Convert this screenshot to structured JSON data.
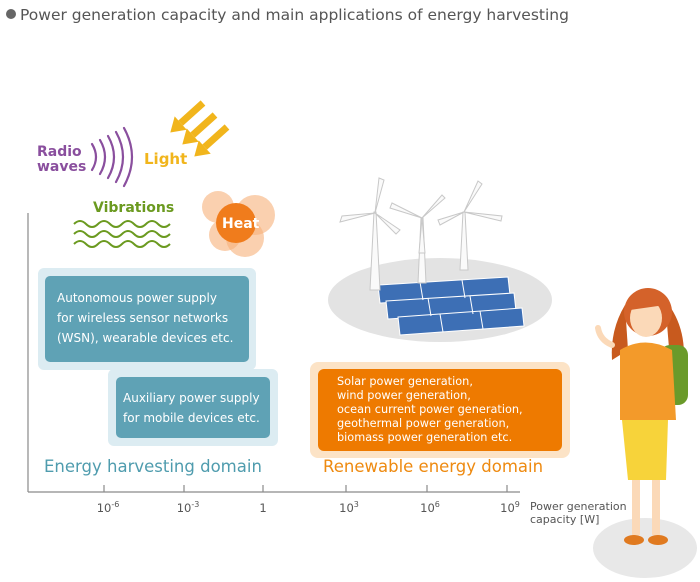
{
  "title": "Power generation capacity and main applications of energy harvesting",
  "sources": {
    "radio_line1": "Radio",
    "radio_line2": "waves",
    "light": "Light",
    "vibrations": "Vibrations",
    "heat": "Heat"
  },
  "boxes": {
    "autonomous": [
      "Autonomous power supply",
      "for wireless sensor networks",
      "(WSN), wearable devices etc."
    ],
    "auxiliary": [
      "Auxiliary power supply",
      "for mobile devices etc."
    ],
    "renewable": [
      "Solar power generation,",
      "wind power generation,",
      "ocean current power generation,",
      "geothermal power generation,",
      "biomass power generation etc."
    ]
  },
  "domains": {
    "harvesting": "Energy harvesting domain",
    "renewable": "Renewable energy domain"
  },
  "axis": {
    "ticks": [
      {
        "base": "10",
        "exp": "-6"
      },
      {
        "base": "10",
        "exp": "-3"
      },
      {
        "base": "1",
        "exp": ""
      },
      {
        "base": "10",
        "exp": "3"
      },
      {
        "base": "10",
        "exp": "6"
      },
      {
        "base": "10",
        "exp": "9"
      }
    ],
    "caption_line1": "Power generation",
    "caption_line2": "capacity [W]"
  },
  "colors": {
    "blue_box": "#5fa2b5",
    "orange_box": "#ee7a00",
    "radio": "#8a4f9e",
    "light": "#f1b51c",
    "vibrations": "#6b9a20",
    "heat": "#f07c1c",
    "harvesting_text": "#4f9cae",
    "renewable_text": "#ee8a10"
  }
}
